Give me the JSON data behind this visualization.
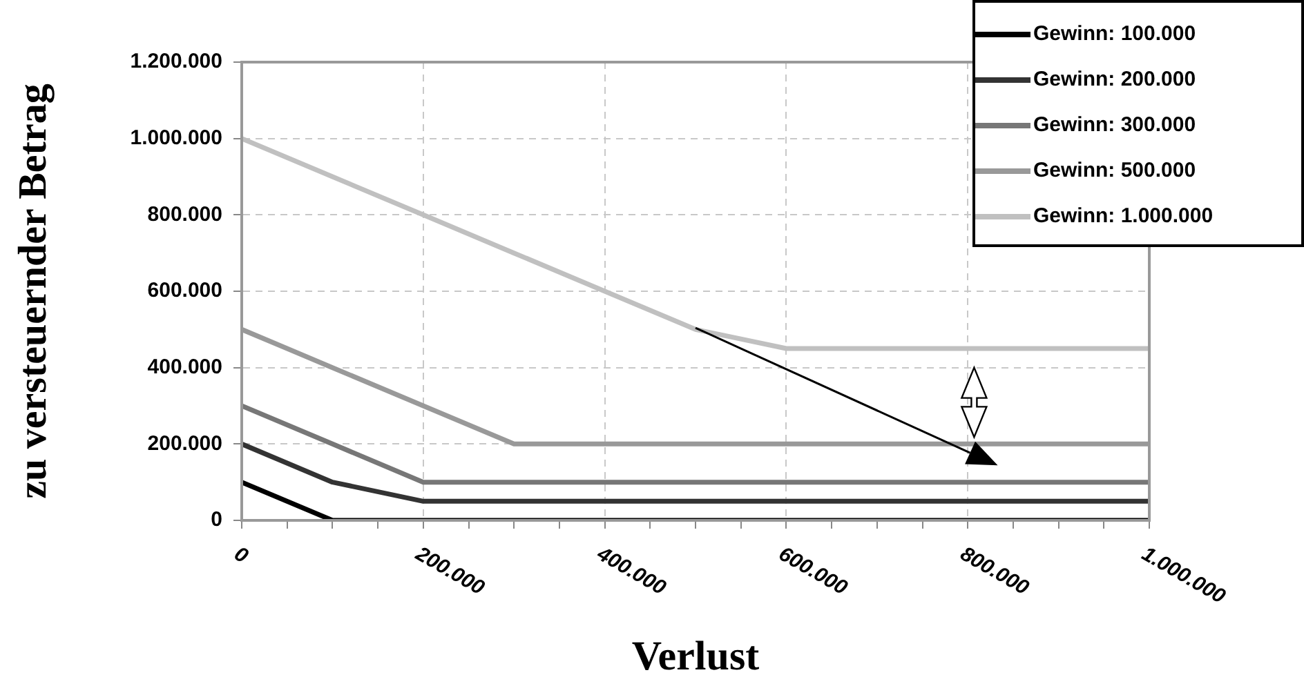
{
  "chart_data": {
    "type": "line",
    "xlabel": "Verlust",
    "ylabel": "zu versteuernder Betrag",
    "x": [
      0,
      100000,
      200000,
      300000,
      400000,
      500000,
      600000,
      700000,
      800000,
      900000,
      1000000
    ],
    "series": [
      {
        "name": "Gewinn: 100.000",
        "color": "#000000",
        "values": [
          100000,
          0,
          0,
          0,
          0,
          0,
          0,
          0,
          0,
          0,
          0
        ]
      },
      {
        "name": "Gewinn: 200.000",
        "color": "#333333",
        "values": [
          200000,
          100000,
          50000,
          50000,
          50000,
          50000,
          50000,
          50000,
          50000,
          50000,
          50000
        ]
      },
      {
        "name": "Gewinn: 300.000",
        "color": "#777777",
        "values": [
          300000,
          200000,
          100000,
          100000,
          100000,
          100000,
          100000,
          100000,
          100000,
          100000,
          100000
        ]
      },
      {
        "name": "Gewinn: 500.000",
        "color": "#999999",
        "values": [
          500000,
          400000,
          300000,
          200000,
          200000,
          200000,
          200000,
          200000,
          200000,
          200000,
          200000
        ]
      },
      {
        "name": "Gewinn: 1.000.000",
        "color": "#c0c0c0",
        "values": [
          1000000,
          900000,
          800000,
          700000,
          600000,
          500000,
          450000,
          450000,
          450000,
          450000,
          450000
        ]
      }
    ],
    "xlim": [
      0,
      1000000
    ],
    "xticks": [
      0,
      {
        "value": 50000,
        "label": null
      },
      {
        "value": 100000,
        "label": null
      },
      {
        "value": 150000,
        "label": null
      },
      {
        "value": 200000,
        "label": "200.000"
      },
      {
        "value": 250000,
        "label": null
      },
      {
        "value": 300000,
        "label": null
      },
      {
        "value": 350000,
        "label": null
      },
      {
        "value": 400000,
        "label": "400.000"
      },
      {
        "value": 450000,
        "label": null
      },
      {
        "value": 500000,
        "label": null
      },
      {
        "value": 550000,
        "label": null
      },
      {
        "value": 600000,
        "label": "600.000"
      },
      {
        "value": 650000,
        "label": null
      },
      {
        "value": 700000,
        "label": null
      },
      {
        "value": 750000,
        "label": null
      },
      {
        "value": 800000,
        "label": "800.000"
      },
      {
        "value": 850000,
        "label": null
      },
      {
        "value": 900000,
        "label": null
      },
      {
        "value": 950000,
        "label": null
      },
      {
        "value": 1000000,
        "label": "1.000.000"
      }
    ],
    "ylim": [
      0,
      1200000
    ],
    "yticks": [
      0,
      {
        "value": 200000,
        "label": "200.000"
      },
      {
        "value": 400000,
        "label": "400.000"
      },
      {
        "value": 600000,
        "label": "600.000"
      },
      {
        "value": 800000,
        "label": "800.000"
      },
      {
        "value": 1000000,
        "label": "1.000.000"
      },
      {
        "value": 1200000,
        "label": "1.200.000"
      }
    ],
    "grid": true,
    "legend": "top right",
    "marker": "none",
    "line_style": "solid"
  }
}
